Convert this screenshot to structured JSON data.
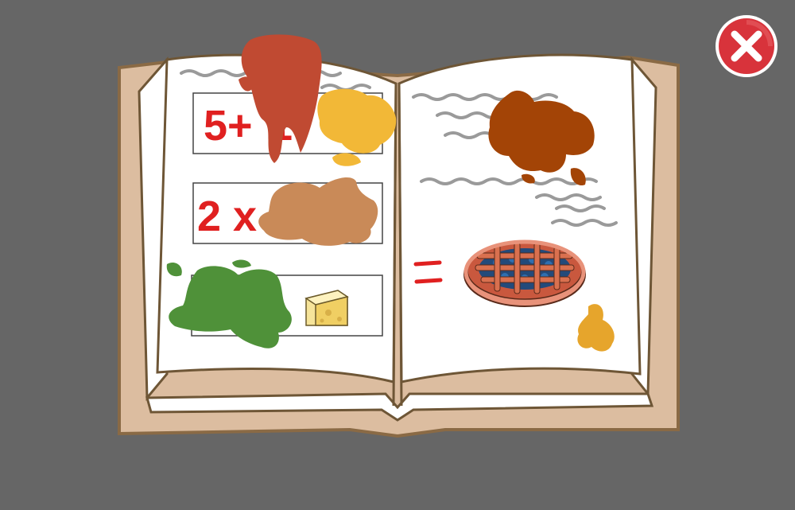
{
  "colors": {
    "background": "#666666",
    "book_cover": "#dcbda0",
    "book_outline": "#8a6a45",
    "page": "#ffffff",
    "page_outline": "#6e5636",
    "equation_text": "#e02020",
    "scribble": "#9a9a9a",
    "close_button": "#d8333b",
    "close_button_ring": "#ffffff",
    "stain_red": "#c04a32",
    "stain_yellow": "#f2b837",
    "stain_brown": "#a34406",
    "stain_tan": "#c98a58",
    "stain_green": "#4f9139",
    "stain_gold": "#e6a52c"
  },
  "book": {
    "left_page": {
      "equations": [
        {
          "text": "5+",
          "partial_text": "1",
          "hidden_by": "stain_red"
        },
        {
          "text": "2 x",
          "partial_text": "",
          "hidden_by": "stain_tan"
        },
        {
          "text": "",
          "icon": "cheese-icon",
          "hidden_by": "stain_green"
        }
      ]
    },
    "right_page": {
      "equals_sign": "=",
      "result_icon": "pie-icon"
    }
  },
  "close_button": {
    "icon": "close-icon"
  }
}
